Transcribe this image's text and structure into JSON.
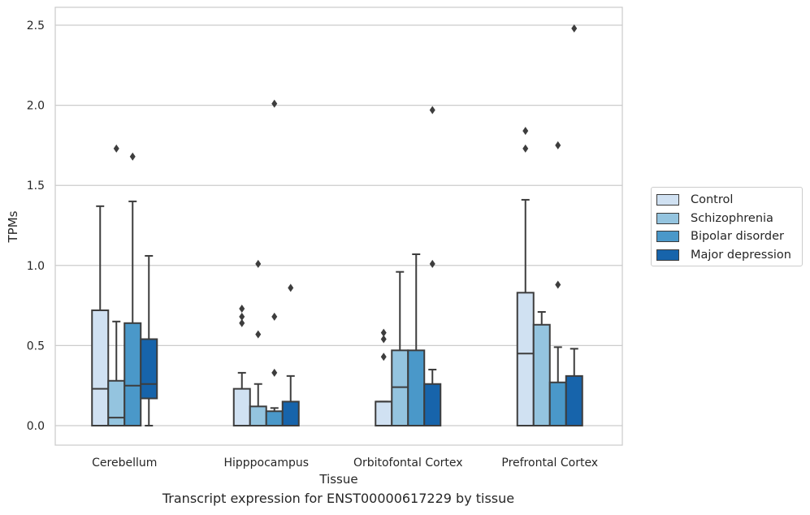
{
  "chart_data": {
    "type": "box",
    "title": "",
    "xlabel": "Tissue",
    "ylabel": "TPMs",
    "caption": "Transcript expression for ENST00000617229 by tissue",
    "ylim": [
      -0.12,
      2.62
    ],
    "yticks": [
      0.0,
      0.5,
      1.0,
      1.5,
      2.0,
      2.5
    ],
    "ytick_labels": [
      "0.0",
      "0.5",
      "1.0",
      "1.5",
      "2.0",
      "2.5"
    ],
    "grid": "horizontal",
    "legend_position": "right",
    "categories": [
      "Cerebellum",
      "Hipppocampus",
      "Orbitofontal Cortex",
      "Prefrontal Cortex"
    ],
    "series": [
      {
        "name": "Control",
        "color": "#d0e1f2",
        "boxes": [
          {
            "whisker_low": 0.0,
            "q1": 0.0,
            "median": 0.23,
            "q3": 0.72,
            "whisker_high": 1.37,
            "outliers": []
          },
          {
            "whisker_low": 0.0,
            "q1": 0.0,
            "median": 0.0,
            "q3": 0.23,
            "whisker_high": 0.33,
            "outliers": [
              0.64,
              0.68,
              0.73
            ]
          },
          {
            "whisker_low": 0.0,
            "q1": 0.0,
            "median": 0.15,
            "q3": 0.15,
            "whisker_high": 0.15,
            "outliers": [
              0.43,
              0.54,
              0.58
            ]
          },
          {
            "whisker_low": 0.0,
            "q1": 0.0,
            "median": 0.45,
            "q3": 0.83,
            "whisker_high": 1.41,
            "outliers": [
              1.73,
              1.84
            ]
          }
        ]
      },
      {
        "name": "Schizophrenia",
        "color": "#94c4df",
        "boxes": [
          {
            "whisker_low": 0.0,
            "q1": 0.0,
            "median": 0.05,
            "q3": 0.28,
            "whisker_high": 0.65,
            "outliers": [
              1.73
            ]
          },
          {
            "whisker_low": 0.0,
            "q1": 0.0,
            "median": 0.0,
            "q3": 0.12,
            "whisker_high": 0.26,
            "outliers": [
              0.57,
              1.01
            ]
          },
          {
            "whisker_low": 0.0,
            "q1": 0.0,
            "median": 0.24,
            "q3": 0.47,
            "whisker_high": 0.96,
            "outliers": []
          },
          {
            "whisker_low": 0.0,
            "q1": 0.0,
            "median": 0.0,
            "q3": 0.63,
            "whisker_high": 0.71,
            "outliers": []
          }
        ]
      },
      {
        "name": "Bipolar disorder",
        "color": "#4a98c9",
        "boxes": [
          {
            "whisker_low": 0.0,
            "q1": 0.0,
            "median": 0.25,
            "q3": 0.64,
            "whisker_high": 1.4,
            "outliers": [
              1.68
            ]
          },
          {
            "whisker_low": 0.0,
            "q1": 0.0,
            "median": 0.0,
            "q3": 0.09,
            "whisker_high": 0.11,
            "outliers": [
              0.33,
              0.68,
              2.01
            ]
          },
          {
            "whisker_low": 0.0,
            "q1": 0.0,
            "median": 0.0,
            "q3": 0.47,
            "whisker_high": 1.07,
            "outliers": []
          },
          {
            "whisker_low": 0.0,
            "q1": 0.0,
            "median": 0.0,
            "q3": 0.27,
            "whisker_high": 0.49,
            "outliers": [
              0.88,
              1.75
            ]
          }
        ]
      },
      {
        "name": "Major depression",
        "color": "#1764ab",
        "boxes": [
          {
            "whisker_low": 0.0,
            "q1": 0.17,
            "median": 0.26,
            "q3": 0.54,
            "whisker_high": 1.06,
            "outliers": []
          },
          {
            "whisker_low": 0.0,
            "q1": 0.0,
            "median": 0.0,
            "q3": 0.15,
            "whisker_high": 0.31,
            "outliers": [
              0.86
            ]
          },
          {
            "whisker_low": 0.0,
            "q1": 0.0,
            "median": 0.0,
            "q3": 0.26,
            "whisker_high": 0.35,
            "outliers": [
              1.01,
              1.97
            ]
          },
          {
            "whisker_low": 0.0,
            "q1": 0.0,
            "median": 0.0,
            "q3": 0.31,
            "whisker_high": 0.48,
            "outliers": [
              2.48
            ]
          }
        ]
      }
    ]
  }
}
